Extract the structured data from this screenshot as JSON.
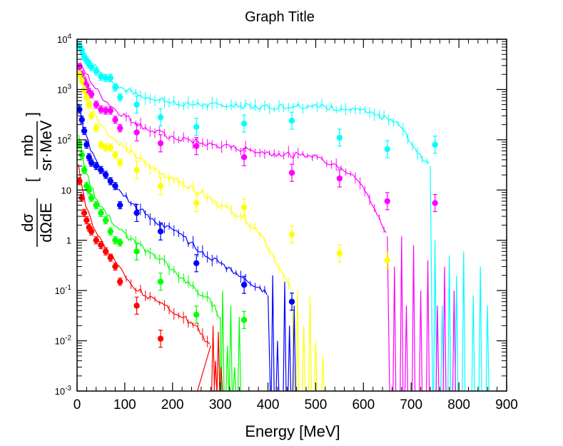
{
  "chart_data": {
    "type": "scatter",
    "title": "Graph Title",
    "xlabel": "Energy [MeV]",
    "ylabel": "dσ/dΩdE [mb/sr·MeV]",
    "ylabel_parts": {
      "num": "dσ",
      "den": "dΩdE",
      "unit_num": "mb",
      "unit_den": "sr·MeV"
    },
    "xlim": [
      0,
      900
    ],
    "ylim": [
      0.001,
      10000
    ],
    "yscale": "log",
    "x_ticks": [
      "0",
      "100",
      "200",
      "300",
      "400",
      "500",
      "600",
      "700",
      "800",
      "900"
    ],
    "y_ticks": [
      {
        "value": 0.001,
        "mant": "10",
        "exp": "-3"
      },
      {
        "value": 0.01,
        "mant": "10",
        "exp": "-2"
      },
      {
        "value": 0.1,
        "mant": "10",
        "exp": "-1"
      },
      {
        "value": 1,
        "mant": "1",
        "exp": ""
      },
      {
        "value": 10,
        "mant": "10",
        "exp": ""
      },
      {
        "value": 100,
        "mant": "10",
        "exp": "2"
      },
      {
        "value": 1000,
        "mant": "10",
        "exp": "3"
      },
      {
        "value": 10000,
        "mant": "10",
        "exp": "4"
      }
    ],
    "series": [
      {
        "name": "cyan",
        "color": "#00ffff",
        "points": [
          [
            5,
            7500
          ],
          [
            10,
            6000
          ],
          [
            15,
            4500
          ],
          [
            20,
            3800
          ],
          [
            25,
            3200
          ],
          [
            30,
            2800
          ],
          [
            40,
            2300
          ],
          [
            50,
            1800
          ],
          [
            60,
            1700
          ],
          [
            70,
            1700
          ],
          [
            80,
            1100
          ],
          [
            90,
            700
          ],
          [
            125,
            500
          ],
          [
            175,
            280
          ],
          [
            250,
            180
          ],
          [
            350,
            210
          ],
          [
            450,
            240
          ],
          [
            550,
            110
          ],
          [
            650,
            65
          ],
          [
            750,
            80
          ]
        ],
        "curve": [
          [
            3,
            8000
          ],
          [
            20,
            4500
          ],
          [
            40,
            2700
          ],
          [
            60,
            1800
          ],
          [
            80,
            1300
          ],
          [
            100,
            1000
          ],
          [
            120,
            800
          ],
          [
            150,
            700
          ],
          [
            200,
            560
          ],
          [
            250,
            500
          ],
          [
            300,
            480
          ],
          [
            350,
            460
          ],
          [
            400,
            450
          ],
          [
            450,
            480
          ],
          [
            500,
            470
          ],
          [
            550,
            420
          ],
          [
            600,
            360
          ],
          [
            650,
            260
          ],
          [
            680,
            180
          ],
          [
            700,
            90
          ],
          [
            720,
            50
          ],
          [
            740,
            30
          ]
        ],
        "spikes": [
          [
            750,
            1
          ],
          [
            765,
            0.05
          ],
          [
            780,
            0.5
          ],
          [
            795,
            0.2
          ],
          [
            810,
            0.6
          ],
          [
            830,
            0.08
          ],
          [
            845,
            0.3
          ],
          [
            860,
            0.05
          ]
        ],
        "drop_x": 745
      },
      {
        "name": "magenta",
        "color": "#ff00ff",
        "points": [
          [
            5,
            2800
          ],
          [
            10,
            2000
          ],
          [
            15,
            1500
          ],
          [
            20,
            1200
          ],
          [
            25,
            900
          ],
          [
            30,
            800
          ],
          [
            40,
            500
          ],
          [
            50,
            400
          ],
          [
            60,
            380
          ],
          [
            70,
            380
          ],
          [
            80,
            250
          ],
          [
            90,
            170
          ],
          [
            125,
            140
          ],
          [
            175,
            85
          ],
          [
            250,
            75
          ],
          [
            350,
            45
          ],
          [
            450,
            22
          ],
          [
            550,
            17
          ],
          [
            650,
            6
          ],
          [
            750,
            5.5
          ]
        ],
        "curve": [
          [
            3,
            3500
          ],
          [
            20,
            2000
          ],
          [
            40,
            1000
          ],
          [
            60,
            600
          ],
          [
            80,
            400
          ],
          [
            100,
            300
          ],
          [
            120,
            230
          ],
          [
            150,
            160
          ],
          [
            200,
            110
          ],
          [
            250,
            90
          ],
          [
            300,
            75
          ],
          [
            350,
            65
          ],
          [
            400,
            55
          ],
          [
            450,
            50
          ],
          [
            500,
            45
          ],
          [
            550,
            30
          ],
          [
            580,
            20
          ],
          [
            610,
            8
          ],
          [
            630,
            3
          ],
          [
            650,
            1.2
          ]
        ],
        "spikes": [
          [
            665,
            0.3
          ],
          [
            680,
            1.2
          ],
          [
            690,
            0.05
          ],
          [
            705,
            0.8
          ],
          [
            720,
            0.1
          ],
          [
            735,
            0.4
          ],
          [
            755,
            0.05
          ],
          [
            770,
            0.3
          ],
          [
            790,
            0.1
          ]
        ],
        "drop_x": 655
      },
      {
        "name": "yellow",
        "color": "#ffff00",
        "points": [
          [
            5,
            2000
          ],
          [
            10,
            1500
          ],
          [
            15,
            1000
          ],
          [
            20,
            700
          ],
          [
            25,
            500
          ],
          [
            30,
            300
          ],
          [
            40,
            170
          ],
          [
            50,
            80
          ],
          [
            60,
            70
          ],
          [
            70,
            70
          ],
          [
            80,
            50
          ],
          [
            90,
            35
          ],
          [
            125,
            25
          ],
          [
            175,
            12
          ],
          [
            250,
            5.5
          ],
          [
            350,
            4.5
          ],
          [
            450,
            1.3
          ],
          [
            550,
            0.55
          ],
          [
            650,
            0.4
          ]
        ],
        "curve": [
          [
            3,
            2200
          ],
          [
            20,
            800
          ],
          [
            40,
            300
          ],
          [
            60,
            150
          ],
          [
            80,
            100
          ],
          [
            100,
            70
          ],
          [
            120,
            50
          ],
          [
            150,
            30
          ],
          [
            200,
            17
          ],
          [
            250,
            10
          ],
          [
            280,
            7
          ],
          [
            300,
            5
          ],
          [
            330,
            3.5
          ],
          [
            350,
            2.5
          ],
          [
            380,
            1.5
          ],
          [
            400,
            0.7
          ],
          [
            420,
            0.3
          ],
          [
            450,
            0.1
          ]
        ],
        "spikes": [
          [
            462,
            0.1
          ],
          [
            475,
            0.02
          ],
          [
            488,
            0.08
          ],
          [
            500,
            0.01
          ],
          [
            515,
            0.005
          ]
        ],
        "drop_x": 455
      },
      {
        "name": "blue",
        "color": "#0000ff",
        "points": [
          [
            5,
            400
          ],
          [
            10,
            250
          ],
          [
            15,
            150
          ],
          [
            20,
            80
          ],
          [
            25,
            45
          ],
          [
            30,
            35
          ],
          [
            40,
            30
          ],
          [
            50,
            25
          ],
          [
            60,
            20
          ],
          [
            70,
            15
          ],
          [
            80,
            12
          ],
          [
            90,
            5
          ],
          [
            125,
            3.5
          ],
          [
            175,
            1.5
          ],
          [
            250,
            0.35
          ],
          [
            350,
            0.13
          ],
          [
            450,
            0.06
          ]
        ],
        "curve": [
          [
            3,
            500
          ],
          [
            20,
            100
          ],
          [
            40,
            40
          ],
          [
            60,
            20
          ],
          [
            80,
            12
          ],
          [
            100,
            8
          ],
          [
            120,
            5
          ],
          [
            150,
            3
          ],
          [
            180,
            2
          ],
          [
            200,
            1.6
          ],
          [
            230,
            1
          ],
          [
            260,
            0.6
          ],
          [
            290,
            0.4
          ],
          [
            310,
            0.3
          ],
          [
            340,
            0.2
          ],
          [
            360,
            0.15
          ],
          [
            380,
            0.12
          ],
          [
            400,
            0.08
          ]
        ],
        "spikes": [
          [
            410,
            0.2
          ],
          [
            420,
            0.01
          ],
          [
            435,
            0.15
          ],
          [
            445,
            0.02
          ],
          [
            455,
            0.05
          ]
        ],
        "drop_x": 405
      },
      {
        "name": "green",
        "color": "#00ff00",
        "points": [
          [
            5,
            80
          ],
          [
            10,
            50
          ],
          [
            15,
            25
          ],
          [
            20,
            12
          ],
          [
            25,
            10
          ],
          [
            30,
            7
          ],
          [
            40,
            5
          ],
          [
            50,
            3.5
          ],
          [
            60,
            2.5
          ],
          [
            70,
            1.5
          ],
          [
            80,
            1
          ],
          [
            90,
            0.9
          ],
          [
            125,
            0.6
          ],
          [
            175,
            0.15
          ],
          [
            250,
            0.033
          ],
          [
            350,
            0.026
          ]
        ],
        "curve": [
          [
            3,
            120
          ],
          [
            20,
            20
          ],
          [
            40,
            7
          ],
          [
            60,
            3.5
          ],
          [
            80,
            2
          ],
          [
            100,
            1.3
          ],
          [
            120,
            0.9
          ],
          [
            150,
            0.6
          ],
          [
            180,
            0.4
          ],
          [
            200,
            0.25
          ],
          [
            230,
            0.15
          ],
          [
            250,
            0.1
          ],
          [
            280,
            0.06
          ],
          [
            300,
            0.03
          ]
        ],
        "spikes": [
          [
            305,
            0.1
          ],
          [
            315,
            0.008
          ],
          [
            322,
            0.05
          ],
          [
            330,
            0.003
          ],
          [
            340,
            0.03
          ]
        ],
        "drop_x": 300
      },
      {
        "name": "red",
        "color": "#ff0000",
        "points": [
          [
            5,
            15
          ],
          [
            10,
            7
          ],
          [
            15,
            3.5
          ],
          [
            20,
            2.5
          ],
          [
            25,
            1.8
          ],
          [
            30,
            1.5
          ],
          [
            40,
            1
          ],
          [
            50,
            0.8
          ],
          [
            60,
            0.6
          ],
          [
            70,
            0.45
          ],
          [
            80,
            0.3
          ],
          [
            90,
            0.15
          ],
          [
            125,
            0.05
          ],
          [
            175,
            0.011
          ]
        ],
        "curve": [
          [
            3,
            30
          ],
          [
            20,
            4
          ],
          [
            40,
            1.5
          ],
          [
            60,
            0.7
          ],
          [
            80,
            0.4
          ],
          [
            100,
            0.2
          ],
          [
            120,
            0.12
          ],
          [
            150,
            0.07
          ],
          [
            180,
            0.05
          ],
          [
            200,
            0.04
          ],
          [
            220,
            0.03
          ],
          [
            250,
            0.02
          ],
          [
            270,
            0.01
          ],
          [
            280,
            0.008
          ]
        ],
        "spikes": [
          [
            285,
            0.02
          ],
          [
            290,
            0.004
          ],
          [
            296,
            0.015
          ],
          [
            302,
            0.003
          ]
        ],
        "drop_x": 250
      }
    ]
  }
}
